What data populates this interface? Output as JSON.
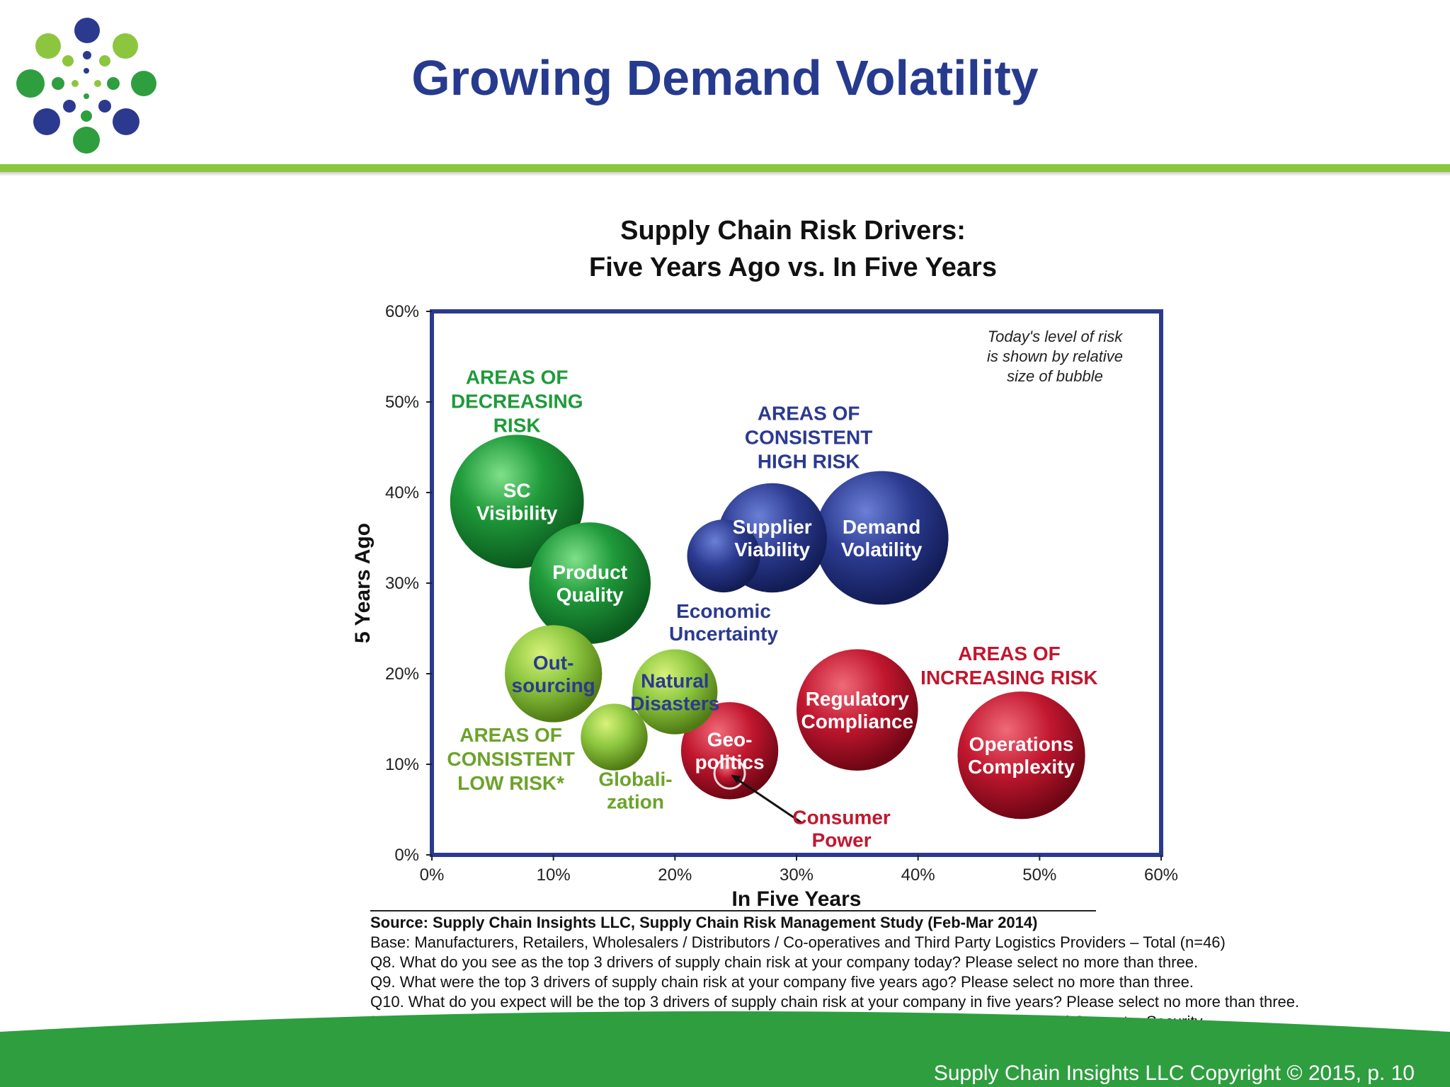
{
  "title": "Growing Demand Volatility",
  "copyright": "Supply Chain Insights LLC Copyright © 2015, p. 10",
  "colors": {
    "title": "#263a8e",
    "accent_green": "#8cc63f",
    "footer_green": "#2e9e3f",
    "frame_blue": "#2b3a8f"
  },
  "chart_data": {
    "type": "scatter",
    "title": "Supply Chain Risk Drivers:",
    "subtitle": "Five Years Ago vs. In Five Years",
    "xlabel": "In Five Years",
    "ylabel": "5 Years Ago",
    "xlim": [
      0,
      60
    ],
    "ylim": [
      0,
      60
    ],
    "x_ticks": [
      "0%",
      "10%",
      "20%",
      "30%",
      "40%",
      "50%",
      "60%"
    ],
    "y_ticks": [
      "0%",
      "10%",
      "20%",
      "30%",
      "40%",
      "50%",
      "60%"
    ],
    "grid": false,
    "note": [
      "Today's level of risk",
      "is shown by relative",
      "size of bubble"
    ],
    "bubbles": [
      {
        "label": [
          "SC",
          "Visibility"
        ],
        "x": 7,
        "y": 39,
        "size": 11,
        "group": "decreasing"
      },
      {
        "label": [
          "Product",
          "Quality"
        ],
        "x": 13,
        "y": 30,
        "size": 10,
        "group": "decreasing"
      },
      {
        "label": [
          "Out-",
          "sourcing"
        ],
        "x": 10,
        "y": 20,
        "size": 8,
        "group": "low"
      },
      {
        "label": [
          "Natural",
          "Disasters"
        ],
        "x": 20,
        "y": 18,
        "size": 7,
        "group": "low"
      },
      {
        "label": [
          "Globali-",
          "zation"
        ],
        "x": 15,
        "y": 13,
        "size": 5.5,
        "group": "low"
      },
      {
        "label": [
          "Economic",
          "Uncertainty"
        ],
        "x": 24,
        "y": 33,
        "size": 6,
        "group": "high"
      },
      {
        "label": [
          "Supplier",
          "Viability"
        ],
        "x": 28,
        "y": 35,
        "size": 9,
        "group": "high"
      },
      {
        "label": [
          "Demand",
          "Volatility"
        ],
        "x": 37,
        "y": 35,
        "size": 11,
        "group": "high"
      },
      {
        "label": [
          "Geo-",
          "politics"
        ],
        "x": 24.5,
        "y": 11.5,
        "size": 8,
        "group": "increasing"
      },
      {
        "label": [
          "Consumer",
          "Power"
        ],
        "x": 24.5,
        "y": 9,
        "size": 2.5,
        "group": "increasing"
      },
      {
        "label": [
          "Regulatory",
          "Compliance"
        ],
        "x": 35,
        "y": 16,
        "size": 10,
        "group": "increasing"
      },
      {
        "label": [
          "Operations",
          "Complexity"
        ],
        "x": 48.5,
        "y": 11,
        "size": 10.5,
        "group": "increasing"
      }
    ],
    "region_labels": [
      {
        "lines": [
          "AREAS OF",
          "DECREASING",
          "RISK"
        ],
        "group": "decreasing"
      },
      {
        "lines": [
          "AREAS OF",
          "CONSISTENT",
          "HIGH RISK"
        ],
        "group": "high"
      },
      {
        "lines": [
          "AREAS OF",
          "INCREASING RISK"
        ],
        "group": "increasing"
      },
      {
        "lines": [
          "AREAS OF",
          "CONSISTENT",
          "LOW RISK*"
        ],
        "group": "low"
      }
    ]
  },
  "notes": {
    "source": "Source:  Supply Chain Insights LLC, Supply Chain Risk Management Study (Feb-Mar 2014)",
    "lines": [
      "Base:  Manufacturers, Retailers, Wholesalers / Distributors / Co-operatives and Third Party Logistics Providers – Total (n=46)",
      "Q8. What do you see as the top 3 drivers of supply chain risk at your company today?  Please select no more than three.",
      "Q9. What were the top 3 drivers of supply chain risk at your company five years ago?  Please select no more than three.",
      "Q10. What do you expect will be the top 3 drivers of supply chain risk at your company in five years?  Please select no more than three.",
      "*Others with consistent low risk not shown:  Corruption, Intellectual Property Right, Water Scarcity and Computer Security"
    ]
  }
}
